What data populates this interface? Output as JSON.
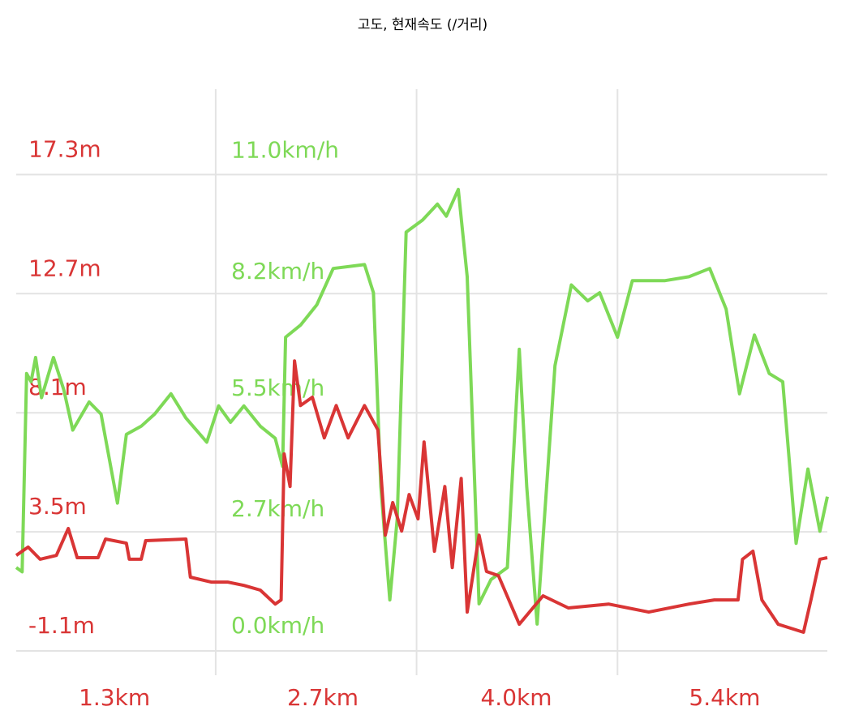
{
  "chart_data": {
    "type": "line",
    "title": "고도, 현재속도 (/거리)",
    "xlim": [
      0.64,
      6.09
    ],
    "xticks": [
      {
        "value": 1.3,
        "label": "1.3km"
      },
      {
        "value": 2.7,
        "label": "2.7km"
      },
      {
        "value": 4.0,
        "label": "4.0km"
      },
      {
        "value": 5.4,
        "label": "5.4km"
      }
    ],
    "xgrid": [
      1.98,
      3.33,
      4.68
    ],
    "ylim": [
      -1.1,
      20.6
    ],
    "yticks": [
      {
        "value": -1.1,
        "label": "-1.1m"
      },
      {
        "value": 3.5,
        "label": "3.5m"
      },
      {
        "value": 8.1,
        "label": "8.1m"
      },
      {
        "value": 12.7,
        "label": "12.7m"
      },
      {
        "value": 17.3,
        "label": "17.3m"
      }
    ],
    "y2lim": [
      0,
      13.0
    ],
    "y2ticks": [
      {
        "value": 0,
        "label": "0.0km/h"
      },
      {
        "value": 2.7,
        "label": "2.7km/h"
      },
      {
        "value": 5.5,
        "label": "5.5km/h"
      },
      {
        "value": 8.2,
        "label": "8.2km/h"
      },
      {
        "value": 11.0,
        "label": "11.0km/h"
      }
    ],
    "grid": true,
    "series": [
      {
        "color": "#7ed957",
        "axis": "y2",
        "x": [
          0.64,
          0.68,
          0.71,
          0.74,
          0.77,
          0.81,
          0.89,
          0.96,
          1.02,
          1.13,
          1.21,
          1.32,
          1.38,
          1.48,
          1.57,
          1.68,
          1.78,
          1.92,
          2.0,
          2.08,
          2.17,
          2.28,
          2.38,
          2.43,
          2.45,
          2.55,
          2.66,
          2.77,
          2.98,
          3.04,
          3.09,
          3.15,
          3.2,
          3.26,
          3.37,
          3.47,
          3.53,
          3.61,
          3.67,
          3.75,
          3.83,
          3.94,
          4.02,
          4.07,
          4.14,
          4.26,
          4.37,
          4.48,
          4.56,
          4.68,
          4.78,
          5.0,
          5.16,
          5.3,
          5.41,
          5.5,
          5.6,
          5.7,
          5.79,
          5.88,
          5.96,
          6.04,
          6.09
        ],
        "values": [
          1.93,
          1.83,
          6.42,
          6.23,
          6.79,
          5.86,
          6.79,
          6.04,
          5.11,
          5.76,
          5.48,
          3.42,
          5.01,
          5.2,
          5.48,
          5.95,
          5.39,
          4.83,
          5.67,
          5.29,
          5.67,
          5.2,
          4.92,
          4.27,
          7.26,
          7.54,
          8.01,
          8.85,
          8.94,
          8.29,
          3.8,
          1.18,
          3.05,
          9.69,
          9.97,
          10.34,
          10.06,
          10.68,
          8.66,
          1.09,
          1.65,
          1.93,
          6.98,
          3.8,
          0.62,
          6.6,
          8.47,
          8.1,
          8.29,
          7.26,
          8.57,
          8.57,
          8.66,
          8.85,
          7.91,
          5.95,
          7.31,
          6.42,
          6.23,
          2.49,
          4.21,
          2.77,
          3.57
        ]
      },
      {
        "color": "#d93535",
        "axis": "y",
        "x": [
          0.64,
          0.72,
          0.8,
          0.91,
          0.99,
          1.05,
          1.19,
          1.24,
          1.38,
          1.4,
          1.48,
          1.51,
          1.78,
          1.81,
          1.95,
          2.06,
          2.17,
          2.28,
          2.38,
          2.42,
          2.44,
          2.48,
          2.51,
          2.55,
          2.63,
          2.71,
          2.79,
          2.87,
          2.98,
          3.07,
          3.12,
          3.17,
          3.23,
          3.28,
          3.34,
          3.38,
          3.45,
          3.52,
          3.57,
          3.63,
          3.67,
          3.75,
          3.8,
          3.88,
          4.02,
          4.18,
          4.35,
          4.62,
          4.89,
          5.16,
          5.33,
          5.49,
          5.52,
          5.59,
          5.65,
          5.76,
          5.93,
          5.98,
          6.04,
          6.09
        ],
        "values": [
          2.59,
          2.91,
          2.44,
          2.59,
          3.63,
          2.5,
          2.5,
          3.22,
          3.06,
          2.44,
          2.44,
          3.16,
          3.22,
          1.75,
          1.56,
          1.56,
          1.43,
          1.25,
          0.71,
          0.87,
          6.51,
          5.25,
          10.1,
          8.38,
          8.7,
          7.13,
          8.38,
          7.13,
          8.38,
          7.44,
          3.37,
          4.63,
          3.53,
          4.94,
          4.0,
          6.97,
          2.75,
          5.25,
          2.12,
          5.56,
          0.4,
          3.37,
          1.97,
          1.81,
          -0.07,
          1.03,
          0.56,
          0.71,
          0.4,
          0.71,
          0.87,
          0.87,
          2.44,
          2.75,
          0.87,
          -0.07,
          -0.38,
          0.87,
          2.44,
          2.5
        ]
      }
    ]
  }
}
